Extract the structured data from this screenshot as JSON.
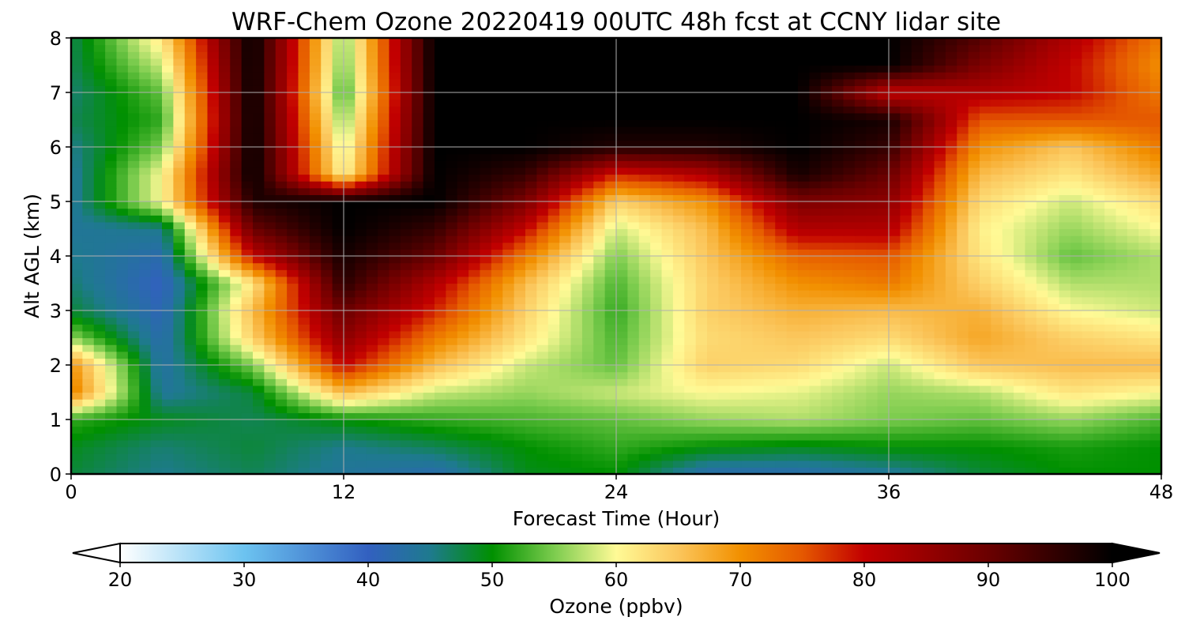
{
  "chart_data": {
    "type": "heatmap",
    "title": "WRF-Chem Ozone  20220419 00UTC 48h fcst at CCNY lidar site",
    "xlabel": "Forecast Time (Hour)",
    "ylabel": "Alt AGL (km)",
    "xlim": [
      0,
      48
    ],
    "ylim": [
      0,
      8
    ],
    "xticks": [
      "0",
      "12",
      "24",
      "36",
      "48"
    ],
    "yticks": [
      "0",
      "1",
      "2",
      "3",
      "4",
      "5",
      "6",
      "7",
      "8"
    ],
    "grid": true,
    "x": [
      0,
      4,
      8,
      12,
      16,
      20,
      24,
      28,
      32,
      36,
      40,
      44,
      48
    ],
    "y": [
      0,
      0.5,
      1,
      1.5,
      2,
      2.5,
      3,
      3.5,
      4,
      4.5,
      5,
      5.5,
      6,
      6.5,
      7,
      7.5,
      8
    ],
    "z": [
      [
        48,
        45,
        47,
        44,
        42,
        49,
        50,
        42,
        42,
        44,
        48,
        50,
        50
      ],
      [
        49,
        46,
        48,
        45,
        47,
        50,
        52,
        50,
        49,
        50,
        50,
        51,
        50
      ],
      [
        52,
        49,
        47,
        50,
        52,
        53,
        54,
        56,
        57,
        55,
        54,
        56,
        53
      ],
      [
        72,
        44,
        48,
        66,
        58,
        56,
        58,
        60,
        59,
        56,
        57,
        62,
        60
      ],
      [
        70,
        43,
        55,
        80,
        66,
        58,
        54,
        64,
        63,
        58,
        65,
        66,
        66
      ],
      [
        56,
        42,
        64,
        86,
        72,
        62,
        53,
        63,
        65,
        63,
        68,
        64,
        62
      ],
      [
        48,
        41,
        66,
        90,
        78,
        64,
        52,
        64,
        67,
        66,
        67,
        60,
        58
      ],
      [
        46,
        40,
        62,
        96,
        82,
        66,
        53,
        64,
        70,
        72,
        64,
        57,
        57
      ],
      [
        45,
        42,
        80,
        98,
        90,
        72,
        55,
        65,
        74,
        75,
        62,
        54,
        57
      ],
      [
        44,
        45,
        90,
        100,
        95,
        80,
        58,
        66,
        82,
        82,
        61,
        56,
        60
      ],
      [
        44,
        60,
        97,
        100,
        100,
        88,
        64,
        70,
        88,
        86,
        63,
        58,
        63
      ],
      [
        44,
        60,
        100,
        60,
        100,
        95,
        78,
        82,
        98,
        90,
        66,
        62,
        68
      ],
      [
        45,
        55,
        100,
        58,
        100,
        100,
        97,
        97,
        100,
        95,
        70,
        65,
        72
      ],
      [
        47,
        52,
        100,
        55,
        100,
        100,
        100,
        100,
        100,
        98,
        75,
        75,
        75
      ],
      [
        46,
        54,
        100,
        52,
        100,
        100,
        100,
        100,
        100,
        80,
        82,
        80,
        72
      ],
      [
        47,
        58,
        100,
        54,
        100,
        100,
        100,
        100,
        100,
        100,
        88,
        80,
        70
      ],
      [
        47,
        62,
        100,
        55,
        100,
        100,
        100,
        100,
        100,
        100,
        92,
        82,
        72
      ]
    ],
    "colorbar": {
      "label": "Ozone  (ppbv)",
      "min": 20,
      "max": 100,
      "ticks": [
        "20",
        "30",
        "40",
        "50",
        "60",
        "70",
        "80",
        "90",
        "100"
      ],
      "extend": "both",
      "stops": [
        {
          "v": 20,
          "c": "#ffffff"
        },
        {
          "v": 30,
          "c": "#6cc3f0"
        },
        {
          "v": 40,
          "c": "#3260c0"
        },
        {
          "v": 45,
          "c": "#1e7a8e"
        },
        {
          "v": 50,
          "c": "#009000"
        },
        {
          "v": 55,
          "c": "#7ccc4e"
        },
        {
          "v": 60,
          "c": "#fffa96"
        },
        {
          "v": 65,
          "c": "#fbc65c"
        },
        {
          "v": 70,
          "c": "#f29000"
        },
        {
          "v": 75,
          "c": "#e55800"
        },
        {
          "v": 80,
          "c": "#c20000"
        },
        {
          "v": 90,
          "c": "#6a0000"
        },
        {
          "v": 100,
          "c": "#000000"
        }
      ]
    }
  }
}
